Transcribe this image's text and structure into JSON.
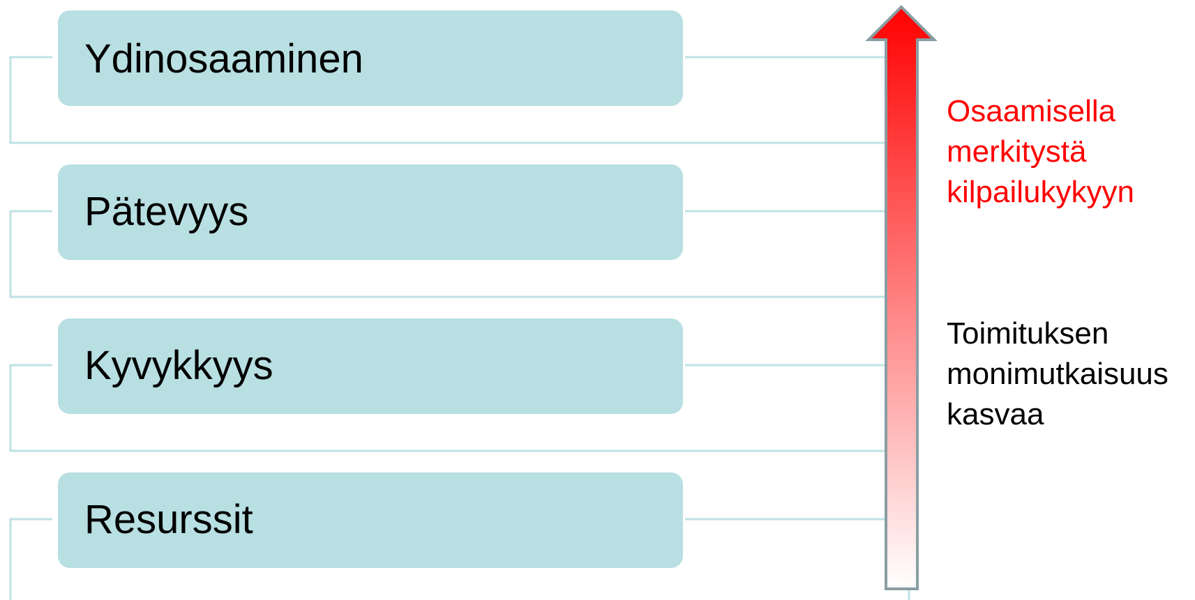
{
  "levels": [
    {
      "label": "Ydinosaaminen"
    },
    {
      "label": "Pätevyys"
    },
    {
      "label": "Kyvykkyys"
    },
    {
      "label": "Resurssit"
    }
  ],
  "arrow": {
    "direction": "up",
    "gradient_top_color": "#ff0000",
    "gradient_bottom_color": "#ffffff",
    "outline_color": "#8a9ea3"
  },
  "notes": {
    "top": [
      "Osaamisella",
      "merkitystä",
      "kilpailukykyyn"
    ],
    "top_color": "#ff0000",
    "bottom": [
      "Toimituksen",
      "monimutkaisuus",
      "kasvaa"
    ],
    "bottom_color": "#000000"
  },
  "colors": {
    "box_fill": "#b8dfe2",
    "connector": "#bfe1e4"
  }
}
